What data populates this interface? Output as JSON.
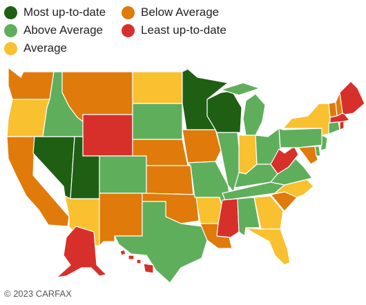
{
  "legend": {
    "items": [
      {
        "key": "most",
        "label": "Most up-to-date",
        "color": "#1f5f14"
      },
      {
        "key": "above",
        "label": "Above Average",
        "color": "#5fae5b"
      },
      {
        "key": "average",
        "label": "Average",
        "color": "#f9c02f"
      },
      {
        "key": "below",
        "label": "Below Average",
        "color": "#e07a0b"
      },
      {
        "key": "least",
        "label": "Least up-to-date",
        "color": "#d7302b"
      }
    ]
  },
  "states": {
    "WA": "below",
    "OR": "average",
    "CA": "below",
    "NV": "most",
    "ID": "above",
    "MT": "below",
    "WY": "least",
    "UT": "most",
    "AZ": "average",
    "CO": "above",
    "NM": "below",
    "ND": "average",
    "SD": "above",
    "NE": "below",
    "KS": "below",
    "OK": "below",
    "TX": "above",
    "MN": "most",
    "IA": "below",
    "MO": "above",
    "AR": "average",
    "LA": "below",
    "WI": "most",
    "IL": "above",
    "MI": "above",
    "IN": "average",
    "OH": "above",
    "KY": "above",
    "TN": "above",
    "MS": "least",
    "AL": "above",
    "GA": "average",
    "FL": "average",
    "SC": "below",
    "NC": "average",
    "VA": "above",
    "WV": "least",
    "PA": "above",
    "NY": "average",
    "MD": "below",
    "DE": "above",
    "NJ": "above",
    "CT": "above",
    "RI": "least",
    "MA": "least",
    "VT": "below",
    "NH": "below",
    "ME": "least",
    "AK": "least",
    "HI": "least"
  },
  "footer": {
    "copyright": "© 2023 CARFAX"
  }
}
